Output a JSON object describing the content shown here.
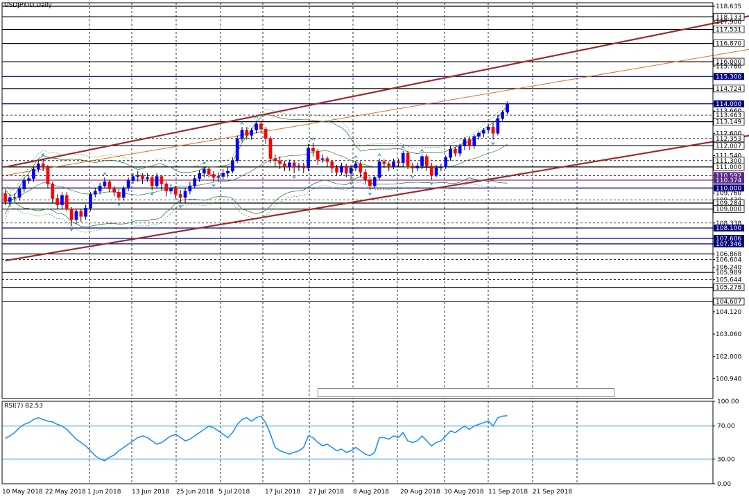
{
  "symbol_label": "USDJPY.ID,Daily",
  "rsi_label": "RSI(7) 82.53",
  "colors": {
    "up_candle": "#0000ff",
    "down_candle": "#ff0000",
    "channel": "#a0282d",
    "channel_mid": "#e07020",
    "level_line": "#000000",
    "level_line_blue": "#000080",
    "bollinger": "#2e7d32",
    "envelope": "#2e7d32",
    "fractal": "#1e90ff",
    "rsi_line": "#1e90ff",
    "rsi_level": "#40a0e0"
  },
  "chart_data": [
    {
      "type": "candlestick",
      "title": "USDJPY.ID,Daily",
      "ylim": [
        100.0,
        118.8
      ],
      "y_tick_labels": [
        "118.635",
        "118.133",
        "117.900",
        "117.531",
        "116.870",
        "116.000",
        "115.780",
        "115.300",
        "114.724",
        "114.000",
        "113.660",
        "113.463",
        "113.149",
        "112.600",
        "112.353",
        "112.007",
        "111.540",
        "111.300",
        "111.000",
        "110.592",
        "110.374",
        "110.000",
        "109.760",
        "109.430",
        "109.284",
        "109.000",
        "108.338",
        "108.100",
        "107.606",
        "107.346",
        "106.868",
        "106.604",
        "106.240",
        "105.989",
        "105.644",
        "105.278",
        "104.607",
        "104.120",
        "103.060",
        "102.000",
        "100.940"
      ],
      "x_tick_labels": [
        "10 May 2018",
        "22 May 2018",
        "1 Jun 2018",
        "13 Jun 2018",
        "25 Jun 2018",
        "5 Jul 2018",
        "17 Jul 2018",
        "27 Jul 2018",
        "8 Aug 2018",
        "20 Aug 2018",
        "30 Aug 2018",
        "11 Sep 2018",
        "21 Sep 2018"
      ],
      "horizontal_levels": [
        118.635,
        118.133,
        117.531,
        116.87,
        116.0,
        115.3,
        114.724,
        114.0,
        113.463,
        113.149,
        112.353,
        112.007,
        111.3,
        111.0,
        110.592,
        110.374,
        110.0,
        109.43,
        109.284,
        109.0,
        108.338,
        108.1,
        107.606,
        107.346,
        106.868,
        106.604,
        105.989,
        105.644,
        105.278,
        104.607
      ],
      "highlighted_levels": [
        {
          "value": "118.635",
          "style": "plain"
        },
        {
          "value": "118.133",
          "style": "boxed"
        },
        {
          "value": "117.531",
          "style": "boxed"
        },
        {
          "value": "116.870",
          "style": "boxed"
        },
        {
          "value": "116.000",
          "style": "boxed"
        },
        {
          "value": "115.300",
          "style": "navy"
        },
        {
          "value": "114.724",
          "style": "boxed"
        },
        {
          "value": "114.000",
          "style": "navy"
        },
        {
          "value": "113.463",
          "style": "boxed"
        },
        {
          "value": "113.149",
          "style": "boxed"
        },
        {
          "value": "112.353",
          "style": "boxed"
        },
        {
          "value": "112.007",
          "style": "boxed"
        },
        {
          "value": "111.300",
          "style": "boxed"
        },
        {
          "value": "111.000",
          "style": "boxed"
        },
        {
          "value": "110.592",
          "style": "purple"
        },
        {
          "value": "110.374",
          "style": "purple"
        },
        {
          "value": "110.000",
          "style": "navy"
        },
        {
          "value": "109.284",
          "style": "boxed"
        },
        {
          "value": "109.000",
          "style": "boxed"
        },
        {
          "value": "108.100",
          "style": "navy"
        },
        {
          "value": "107.606",
          "style": "navy"
        },
        {
          "value": "107.346",
          "style": "navy"
        },
        {
          "value": "105.278",
          "style": "boxed"
        },
        {
          "value": "104.607",
          "style": "boxed"
        }
      ],
      "channel_lines": [
        {
          "name": "channel-upper",
          "from": [
            0,
            111.0
          ],
          "to": [
            160,
            118.3
          ]
        },
        {
          "name": "channel-middle",
          "from": [
            0,
            110.6
          ],
          "to": [
            160,
            116.7
          ]
        },
        {
          "name": "channel-lower",
          "from": [
            0,
            106.55
          ],
          "to": [
            160,
            112.6
          ]
        }
      ],
      "candles": [
        [
          109.75,
          109.35,
          109.9,
          109.2
        ],
        [
          109.35,
          109.55,
          109.7,
          109.1
        ],
        [
          109.55,
          109.55,
          109.75,
          109.3
        ],
        [
          109.55,
          109.95,
          110.1,
          109.4
        ],
        [
          109.95,
          110.35,
          110.5,
          109.8
        ],
        [
          110.35,
          110.45,
          110.6,
          110.2
        ],
        [
          110.45,
          110.9,
          111.0,
          110.3
        ],
        [
          110.9,
          111.15,
          111.3,
          110.75
        ],
        [
          111.15,
          111.0,
          111.4,
          110.8
        ],
        [
          111.0,
          110.2,
          111.1,
          110.0
        ],
        [
          110.2,
          109.5,
          110.3,
          109.3
        ],
        [
          109.5,
          109.2,
          109.7,
          109.0
        ],
        [
          109.2,
          109.65,
          109.8,
          109.0
        ],
        [
          109.65,
          109.0,
          109.8,
          108.9
        ],
        [
          109.0,
          108.5,
          109.1,
          108.2
        ],
        [
          108.5,
          108.9,
          109.0,
          108.3
        ],
        [
          108.9,
          108.65,
          109.0,
          108.4
        ],
        [
          108.65,
          109.05,
          109.2,
          108.5
        ],
        [
          109.05,
          109.7,
          109.8,
          108.9
        ],
        [
          109.7,
          109.85,
          110.0,
          109.55
        ],
        [
          109.85,
          110.1,
          110.25,
          109.7
        ],
        [
          110.1,
          110.3,
          110.5,
          110.0
        ],
        [
          110.3,
          109.95,
          110.4,
          109.8
        ],
        [
          109.95,
          109.8,
          110.1,
          109.6
        ],
        [
          109.8,
          109.55,
          109.95,
          109.4
        ],
        [
          109.55,
          110.0,
          110.1,
          109.4
        ],
        [
          110.0,
          110.35,
          110.5,
          109.85
        ],
        [
          110.35,
          110.55,
          110.7,
          110.2
        ],
        [
          110.55,
          110.6,
          110.8,
          110.3
        ],
        [
          110.6,
          110.45,
          110.7,
          110.2
        ],
        [
          110.45,
          110.5,
          110.7,
          110.3
        ],
        [
          110.5,
          110.1,
          110.6,
          109.9
        ],
        [
          110.1,
          110.55,
          110.7,
          110.0
        ],
        [
          110.55,
          110.2,
          110.6,
          109.9
        ],
        [
          110.2,
          109.85,
          110.3,
          109.6
        ],
        [
          109.85,
          110.0,
          110.2,
          109.7
        ],
        [
          110.0,
          109.7,
          110.1,
          109.5
        ],
        [
          109.7,
          109.55,
          109.9,
          109.3
        ],
        [
          109.55,
          109.85,
          110.0,
          109.3
        ],
        [
          109.85,
          110.1,
          110.3,
          109.7
        ],
        [
          110.1,
          110.45,
          110.6,
          110.0
        ],
        [
          110.45,
          110.7,
          110.85,
          110.3
        ],
        [
          110.7,
          110.9,
          111.0,
          110.5
        ],
        [
          110.9,
          110.65,
          111.0,
          110.5
        ],
        [
          110.65,
          110.5,
          110.8,
          110.3
        ],
        [
          110.5,
          110.55,
          110.75,
          110.3
        ],
        [
          110.55,
          110.7,
          110.9,
          110.4
        ],
        [
          110.7,
          110.8,
          111.0,
          110.5
        ],
        [
          110.8,
          111.3,
          111.45,
          110.7
        ],
        [
          111.3,
          112.35,
          112.5,
          111.2
        ],
        [
          112.35,
          112.75,
          112.9,
          112.2
        ],
        [
          112.75,
          112.5,
          112.9,
          112.3
        ],
        [
          112.5,
          112.75,
          112.85,
          112.3
        ],
        [
          112.75,
          113.05,
          113.2,
          112.6
        ],
        [
          113.05,
          112.8,
          113.2,
          112.6
        ],
        [
          112.8,
          112.35,
          112.9,
          112.1
        ],
        [
          112.35,
          111.4,
          112.45,
          111.2
        ],
        [
          111.4,
          111.3,
          111.6,
          111.0
        ],
        [
          111.3,
          111.15,
          111.5,
          110.9
        ],
        [
          111.15,
          111.0,
          111.3,
          110.8
        ],
        [
          111.0,
          111.2,
          111.35,
          110.8
        ],
        [
          111.2,
          111.0,
          111.3,
          110.7
        ],
        [
          111.0,
          111.05,
          111.2,
          110.8
        ],
        [
          111.05,
          110.95,
          111.2,
          110.7
        ],
        [
          110.95,
          111.9,
          112.1,
          110.8
        ],
        [
          111.9,
          111.75,
          112.15,
          111.5
        ],
        [
          111.75,
          111.35,
          111.85,
          111.1
        ],
        [
          111.35,
          111.4,
          111.6,
          111.2
        ],
        [
          111.4,
          111.25,
          111.5,
          111.0
        ],
        [
          111.25,
          110.95,
          111.3,
          110.7
        ],
        [
          110.95,
          110.75,
          111.1,
          110.6
        ],
        [
          110.75,
          111.05,
          111.2,
          110.6
        ],
        [
          111.05,
          110.7,
          111.15,
          110.5
        ],
        [
          110.7,
          110.95,
          111.1,
          110.4
        ],
        [
          110.95,
          111.15,
          111.3,
          110.8
        ],
        [
          111.15,
          110.75,
          111.25,
          110.5
        ],
        [
          110.75,
          110.4,
          110.9,
          110.2
        ],
        [
          110.4,
          110.1,
          110.55,
          109.9
        ],
        [
          110.1,
          110.5,
          110.6,
          110.0
        ],
        [
          110.5,
          111.25,
          111.4,
          110.4
        ],
        [
          111.25,
          111.15,
          111.35,
          110.95
        ],
        [
          111.15,
          111.0,
          111.25,
          110.8
        ],
        [
          111.0,
          111.25,
          111.4,
          110.9
        ],
        [
          111.25,
          111.2,
          111.4,
          111.0
        ],
        [
          111.2,
          111.65,
          111.75,
          111.0
        ],
        [
          111.65,
          111.05,
          111.75,
          110.9
        ],
        [
          111.05,
          110.95,
          111.2,
          110.7
        ],
        [
          110.95,
          111.05,
          111.2,
          110.8
        ],
        [
          111.05,
          111.5,
          111.6,
          110.9
        ],
        [
          111.5,
          111.05,
          111.6,
          110.8
        ],
        [
          111.05,
          110.6,
          111.2,
          110.4
        ],
        [
          110.6,
          110.95,
          111.1,
          110.5
        ],
        [
          110.95,
          111.0,
          111.15,
          110.8
        ],
        [
          111.0,
          111.45,
          111.55,
          110.9
        ],
        [
          111.45,
          111.85,
          112.0,
          111.3
        ],
        [
          111.85,
          111.65,
          111.95,
          111.5
        ],
        [
          111.65,
          112.0,
          112.1,
          111.5
        ],
        [
          112.0,
          112.3,
          112.4,
          111.8
        ],
        [
          112.3,
          112.0,
          112.45,
          111.8
        ],
        [
          112.0,
          112.45,
          112.55,
          111.85
        ],
        [
          112.45,
          112.6,
          112.7,
          112.3
        ],
        [
          112.6,
          112.75,
          112.85,
          112.4
        ],
        [
          112.75,
          112.9,
          113.0,
          112.6
        ],
        [
          112.9,
          112.6,
          113.1,
          112.3
        ],
        [
          112.6,
          113.3,
          113.45,
          112.5
        ],
        [
          113.3,
          113.6,
          113.7,
          113.2
        ],
        [
          113.6,
          114.0,
          114.1,
          113.5
        ]
      ]
    },
    {
      "type": "line",
      "title": "RSI(7) 82.53",
      "ylim": [
        0,
        100
      ],
      "y_tick_labels": [
        "100.00",
        "70.00",
        "30.00",
        "0.00"
      ],
      "levels": [
        70,
        30
      ],
      "series": [
        {
          "values": [
            55,
            58,
            62,
            68,
            72,
            74,
            78,
            80,
            78,
            76,
            75,
            72,
            70,
            66,
            60,
            54,
            50,
            46,
            40,
            34,
            30,
            28,
            32,
            35,
            40,
            44,
            48,
            52,
            56,
            58,
            56,
            52,
            48,
            50,
            54,
            58,
            60,
            56,
            52,
            54,
            58,
            62,
            66,
            70,
            68,
            64,
            60,
            56,
            62,
            72,
            78,
            80,
            76,
            80,
            82,
            74,
            60,
            44,
            40,
            38,
            36,
            38,
            40,
            44,
            58,
            56,
            50,
            46,
            48,
            44,
            40,
            42,
            38,
            40,
            44,
            40,
            36,
            34,
            38,
            56,
            56,
            54,
            58,
            56,
            62,
            52,
            50,
            52,
            58,
            52,
            46,
            50,
            52,
            58,
            64,
            62,
            66,
            70,
            66,
            70,
            72,
            74,
            76,
            70,
            80,
            82,
            82.53
          ]
        }
      ]
    }
  ]
}
